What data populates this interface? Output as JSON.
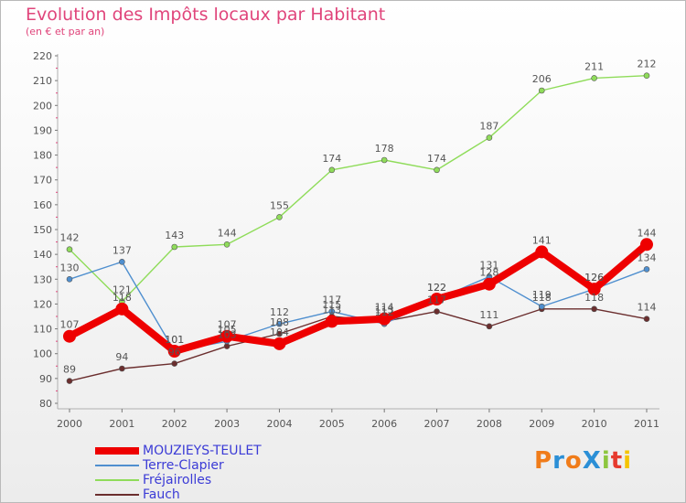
{
  "header": {
    "title": "Evolution des Impôts locaux par Habitant",
    "subtitle": "(en € et par an)"
  },
  "logo": {
    "text": "ProXiti"
  },
  "chart_data": {
    "type": "line",
    "title": "Evolution des Impôts locaux par Habitant",
    "subtitle": "(en € et par an)",
    "categories": [
      "2000",
      "2001",
      "2002",
      "2003",
      "2004",
      "2005",
      "2006",
      "2007",
      "2008",
      "2009",
      "2010",
      "2011"
    ],
    "y_ticks": [
      80,
      90,
      100,
      110,
      120,
      130,
      140,
      150,
      160,
      170,
      180,
      190,
      200,
      210,
      220
    ],
    "ylim": [
      80,
      220
    ],
    "grid": false,
    "legend_position": "bottom-left",
    "series": [
      {
        "name": "MOUZIEYS-TEULET",
        "color": "#ee0000",
        "values": [
          107,
          118,
          101,
          107,
          104,
          113,
          114,
          122,
          128,
          141,
          126,
          144
        ]
      },
      {
        "name": "Terre-Clapier",
        "color": "#4f8fcf",
        "values": [
          130,
          137,
          101,
          105,
          112,
          117,
          112,
          122,
          131,
          119,
          126,
          134
        ]
      },
      {
        "name": "Fréjairolles",
        "color": "#8fdc5a",
        "values": [
          142,
          121,
          143,
          144,
          155,
          174,
          178,
          174,
          187,
          206,
          211,
          212
        ]
      },
      {
        "name": "Fauch",
        "color": "#6b2e2e",
        "values": [
          89,
          94,
          96,
          103,
          108,
          115,
          113,
          117,
          111,
          118,
          118,
          114
        ]
      }
    ]
  }
}
